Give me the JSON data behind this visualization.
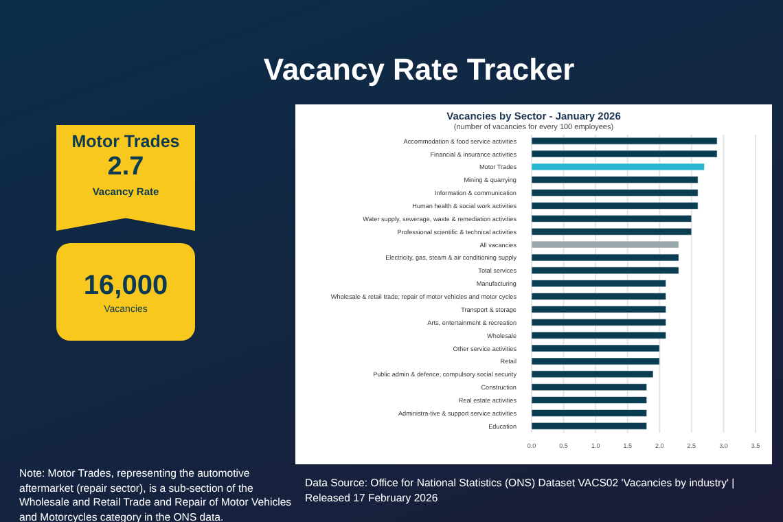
{
  "chart_data": [
    {
      "type": "other",
      "title": "Motor Trades",
      "annotations": [
        "2.7",
        "Vacancy Rate",
        "16,000",
        "Vacancies",
        "Note: Motor Trades, representing the automotive aftermarket (repair sector), is a sub-section of the Wholesale and Retail Trade and Repair of Motor Vehicles and Motorcycles category in the ONS data."
      ]
    },
    {
      "type": "bar",
      "orientation": "horizontal",
      "title": "Vacancies by Sector  - January 2026",
      "subtitle": "(number of vacancies for every 100 employees)",
      "annotations": [
        "Vacancy Rate Tracker",
        "Data Source: Office for National Statistics (ONS) Dataset VACS02 'Vacancies by industry' | Released 17 February 2026"
      ],
      "categories": [
        "Accommodation & food service activities",
        "Financial & insurance activities",
        "Motor Trades",
        "Mining & quarrying",
        "Information & communication",
        "Human health & social work activities",
        "Water supply, sewerage, waste & remediation activities",
        "Professional scientific & technical activities",
        "All vacancies",
        "Electricity, gas, steam & air conditioning supply",
        "Total services",
        "Manufacturing",
        "Wholesale & retail trade; repair of motor vehicles and motor cycles",
        "Transport & storage",
        "Arts, entertainment & recreation",
        "Wholesale",
        "Other service activities",
        "Retail",
        "Public admin & defence; compulsory social security",
        "Construction",
        "Real estate activities",
        "Administra-tive & support service activities",
        "Education"
      ],
      "values": [
        2.9,
        2.9,
        2.7,
        2.6,
        2.6,
        2.6,
        2.5,
        2.5,
        2.3,
        2.3,
        2.3,
        2.1,
        2.1,
        2.1,
        2.1,
        2.1,
        2.0,
        2.0,
        1.9,
        1.8,
        1.8,
        1.8,
        1.8
      ],
      "colors": [
        "#0b3d52",
        "#0b3d52",
        "#29b6d1",
        "#0b3d52",
        "#0b3d52",
        "#0b3d52",
        "#0b3d52",
        "#0b3d52",
        "#9aa9ab",
        "#0b3d52",
        "#0b3d52",
        "#0b3d52",
        "#0b3d52",
        "#0b3d52",
        "#0b3d52",
        "#0b3d52",
        "#0b3d52",
        "#0b3d52",
        "#0b3d52",
        "#0b3d52",
        "#0b3d52",
        "#0b3d52",
        "#0b3d52"
      ],
      "xlim": [
        0,
        3.5
      ],
      "xticks": [
        {
          "value": 0,
          "label": "0.0"
        },
        {
          "value": 0.5,
          "label": "0.5"
        },
        {
          "value": 1,
          "label": "1.0"
        },
        {
          "value": 1.5,
          "label": "1.5"
        },
        {
          "value": 2,
          "label": "2.0"
        },
        {
          "value": 2.5,
          "label": "2.5"
        },
        {
          "value": 3,
          "label": "3.0"
        },
        {
          "value": 3.5,
          "label": "3.5"
        }
      ],
      "grid": "x"
    }
  ]
}
